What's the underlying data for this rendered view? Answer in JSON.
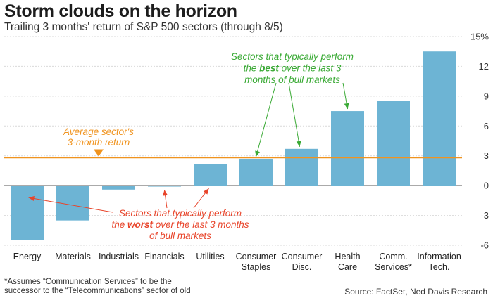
{
  "chart_data": {
    "type": "bar",
    "title": "Storm clouds on the horizon",
    "subtitle": "Trailing 3 months' return of S&P 500 sectors (through 8/5)",
    "categories": [
      [
        "Energy"
      ],
      [
        "Materials"
      ],
      [
        "Industrials"
      ],
      [
        "Financials"
      ],
      [
        "Utilities"
      ],
      [
        "Consumer",
        "Staples"
      ],
      [
        "Consumer",
        "Disc."
      ],
      [
        "Health",
        "Care"
      ],
      [
        "Comm.",
        "Services*"
      ],
      [
        "Information",
        "Tech."
      ]
    ],
    "values": [
      -5.5,
      -3.5,
      -0.4,
      -0.1,
      2.2,
      2.7,
      3.7,
      7.5,
      8.5,
      13.5
    ],
    "ylim": [
      -6,
      15
    ],
    "yticks": [
      -6,
      -3,
      0,
      3,
      6,
      9,
      12,
      15
    ],
    "ytick_labels": [
      "-6",
      "-3",
      "0",
      "3",
      "6",
      "9",
      "12",
      "15%"
    ],
    "average_line": 2.8,
    "grid": true,
    "colors": {
      "bar": "#6db4d4",
      "average": "#f0931e",
      "best": "#3aaa35",
      "worst": "#e8442a",
      "grid": "#d9d9d9"
    },
    "annotations": {
      "average": [
        "Average sector's",
        "3-month return"
      ],
      "best": [
        [
          "Sectors that typically perform"
        ],
        [
          "the ",
          "best",
          " over the last 3"
        ],
        [
          "months of bull markets"
        ]
      ],
      "worst": [
        [
          "Sectors that typically perform"
        ],
        [
          "the ",
          "worst",
          " over the last 3 months"
        ],
        [
          "of bull markets"
        ]
      ]
    },
    "best_indices": [
      5,
      6,
      7
    ],
    "worst_indices": [
      0,
      3,
      4
    ]
  },
  "footnote": [
    "*Assumes “Communication Services” to be the",
    "successor to the “Telecommunications” sector of old"
  ],
  "source": "Source: FactSet, Ned Davis Research"
}
